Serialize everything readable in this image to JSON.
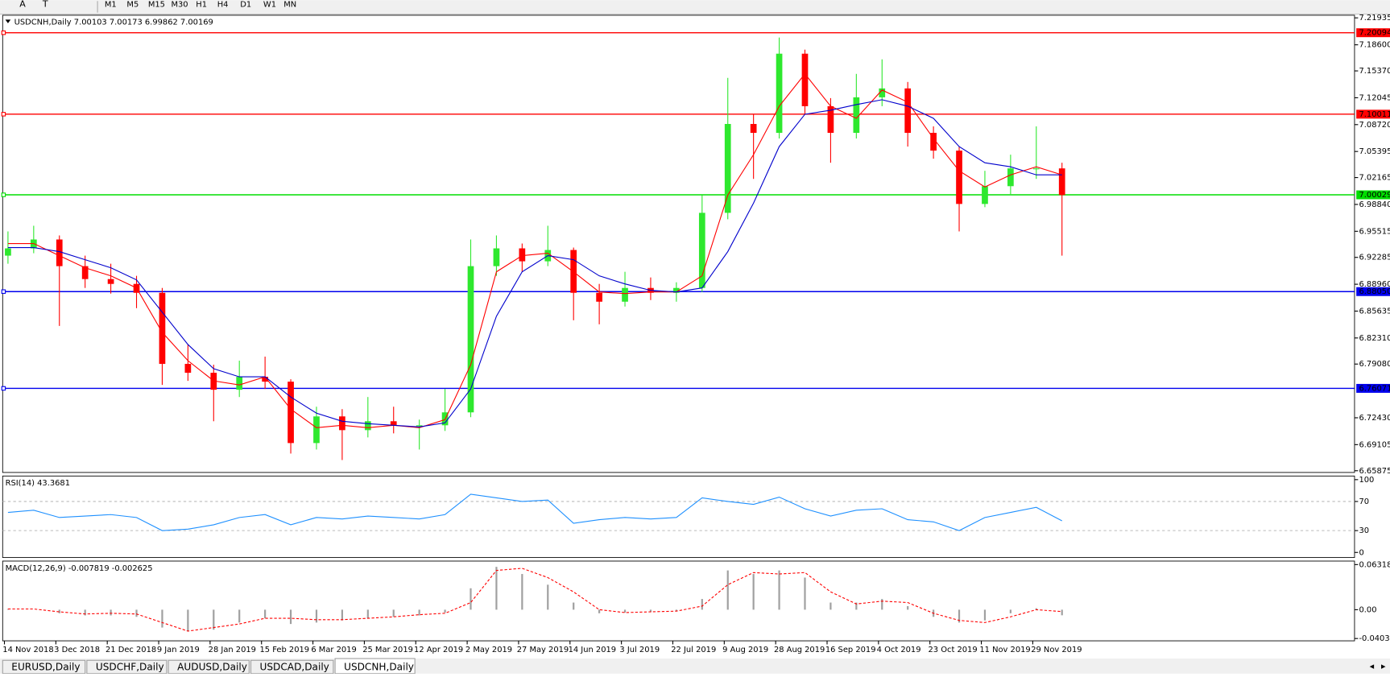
{
  "toolbar": {
    "tools": [
      "A",
      "T"
    ],
    "timeframes": [
      "M1",
      "M5",
      "M15",
      "M30",
      "H1",
      "H4",
      "D1",
      "W1",
      "MN"
    ]
  },
  "tabs": [
    "EURUSD,Daily",
    "USDCHF,Daily",
    "AUDUSD,Daily",
    "USDCAD,Daily",
    "USDCNH,Daily"
  ],
  "active_tab": 4,
  "chart_data": [
    {
      "type": "candlestick",
      "title": "USDCNH,Daily  7.00103 7.00173 6.99862 7.00169",
      "categories": [
        "14 Nov 2018",
        null,
        "3 Dec 2018",
        null,
        "21 Dec 2018",
        null,
        "9 Jan 2019",
        null,
        "28 Jan 2019",
        null,
        "15 Feb 2019",
        null,
        "6 Mar 2019",
        null,
        "25 Mar 2019",
        null,
        "12 Apr 2019",
        null,
        "2 May 2019",
        null,
        "27 May 2019",
        null,
        "14 Jun 2019",
        null,
        "3 Jul 2019",
        null,
        "22 Jul 2019",
        null,
        "9 Aug 2019",
        null,
        "28 Aug 2019",
        null,
        "16 Sep 2019",
        null,
        "4 Oct 2019",
        null,
        "23 Oct 2019",
        null,
        "11 Nov 2019",
        null,
        "29 Nov 2019",
        null
      ],
      "open": [
        6.925,
        6.934,
        6.945,
        6.912,
        6.896,
        6.89,
        6.879,
        6.791,
        6.78,
        6.759,
        6.775,
        6.769,
        6.693,
        6.726,
        6.709,
        6.72,
        6.715,
        6.715,
        6.731,
        6.912,
        6.934,
        6.918,
        6.932,
        6.879,
        6.868,
        6.885,
        6.879,
        6.885,
        6.978,
        7.088,
        7.077,
        7.175,
        7.11,
        7.077,
        7.121,
        7.132,
        7.077,
        7.055,
        6.989,
        7.011,
        7.033,
        7.033
      ],
      "high": [
        6.955,
        6.962,
        6.95,
        6.925,
        6.915,
        6.9,
        6.885,
        6.815,
        6.79,
        6.795,
        6.8,
        6.772,
        6.738,
        6.735,
        6.75,
        6.738,
        6.722,
        6.76,
        6.945,
        6.95,
        6.94,
        6.962,
        6.935,
        6.89,
        6.905,
        6.898,
        6.892,
        7.0,
        7.145,
        7.1,
        7.195,
        7.18,
        7.12,
        7.15,
        7.168,
        7.14,
        7.085,
        7.06,
        7.03,
        7.05,
        7.085,
        7.04
      ],
      "low": [
        6.915,
        6.928,
        6.838,
        6.885,
        6.878,
        6.86,
        6.765,
        6.77,
        6.72,
        6.75,
        6.76,
        6.68,
        6.685,
        6.672,
        6.7,
        6.705,
        6.685,
        6.708,
        6.725,
        6.9,
        6.905,
        6.912,
        6.845,
        6.84,
        6.862,
        6.87,
        6.868,
        6.88,
        6.97,
        7.02,
        7.07,
        7.1,
        7.04,
        7.07,
        7.11,
        7.06,
        7.045,
        6.955,
        6.985,
        7.0,
        7.02,
        6.925
      ],
      "close": [
        6.934,
        6.945,
        6.912,
        6.896,
        6.89,
        6.879,
        6.791,
        6.78,
        6.759,
        6.775,
        6.769,
        6.693,
        6.726,
        6.709,
        6.72,
        6.715,
        6.715,
        6.731,
        6.912,
        6.934,
        6.918,
        6.932,
        6.879,
        6.868,
        6.885,
        6.879,
        6.885,
        6.978,
        7.088,
        7.077,
        7.175,
        7.11,
        7.077,
        7.121,
        7.132,
        7.077,
        7.055,
        6.989,
        7.011,
        7.033,
        7.033,
        7.0
      ],
      "up_color": "#2ee82e",
      "down_color": "#ff0000",
      "overlays": [
        {
          "color": "#ff0000",
          "values": [
            6.94,
            6.94,
            6.925,
            6.91,
            6.9,
            6.885,
            6.83,
            6.795,
            6.77,
            6.765,
            6.775,
            6.735,
            6.712,
            6.715,
            6.712,
            6.715,
            6.712,
            6.722,
            6.79,
            6.905,
            6.925,
            6.928,
            6.905,
            6.88,
            6.878,
            6.88,
            6.88,
            6.9,
            7.0,
            7.05,
            7.11,
            7.15,
            7.11,
            7.095,
            7.13,
            7.115,
            7.07,
            7.03,
            7.01,
            7.025,
            7.035,
            7.025
          ]
        },
        {
          "color": "#0000cc",
          "values": [
            6.935,
            6.935,
            6.93,
            6.92,
            6.91,
            6.895,
            6.855,
            6.815,
            6.785,
            6.775,
            6.775,
            6.75,
            6.73,
            6.72,
            6.717,
            6.715,
            6.713,
            6.718,
            6.76,
            6.85,
            6.905,
            6.925,
            6.92,
            6.9,
            6.89,
            6.882,
            6.88,
            6.885,
            6.93,
            6.99,
            7.06,
            7.1,
            7.105,
            7.112,
            7.118,
            7.11,
            7.095,
            7.06,
            7.04,
            7.035,
            7.025,
            7.025
          ]
        }
      ],
      "ylim": [
        6.6566,
        7.2226
      ],
      "yticks": [
        {
          "value": 7.21935,
          "label": "7.21935"
        },
        {
          "value": 7.186,
          "label": "7.18600"
        },
        {
          "value": 7.1537,
          "label": "7.15370"
        },
        7.12045,
        {
          "value": 7.0872,
          "label": "7.08720"
        },
        7.05395,
        7.02165,
        {
          "value": 6.9884,
          "label": "6.98840"
        },
        6.95515,
        6.92285,
        {
          "value": 6.8896,
          "label": "6.88960"
        },
        6.85635,
        {
          "value": 6.8231,
          "label": "6.82310"
        },
        {
          "value": 6.7908,
          "label": "6.79080"
        },
        {
          "value": 6.7243,
          "label": "6.72430"
        },
        6.69105,
        6.65875
      ],
      "hlines": [
        {
          "value": 7.20094,
          "color": "#ff0000"
        },
        {
          "value": 7.10011,
          "color": "#ff0000"
        },
        {
          "value": 7.00029,
          "color": "#00dd00"
        },
        {
          "value": {
            "value": 6.8805,
            "label": "6.88050"
          },
          "color": "#0000ee"
        },
        {
          "value": 6.76071,
          "color": "#0000ee"
        }
      ]
    },
    {
      "type": "line",
      "title": "RSI(14) 43.3681",
      "color": "#1e90ff",
      "values": [
        55,
        58,
        48,
        50,
        52,
        48,
        30,
        32,
        38,
        48,
        52,
        38,
        48,
        46,
        50,
        48,
        46,
        52,
        80,
        75,
        70,
        72,
        40,
        45,
        48,
        46,
        48,
        75,
        70,
        66,
        76,
        60,
        50,
        58,
        60,
        45,
        42,
        30,
        48,
        55,
        62,
        43.3681
      ],
      "ylim": [
        -7,
        105
      ],
      "yticks": [
        100,
        70,
        30,
        0
      ],
      "levels": [
        70,
        30
      ]
    },
    {
      "type": "macd",
      "title": "MACD(12,26,9) -0.007819 -0.002625",
      "histogram_color": "#a0a0a0",
      "signal_color": "#ff0000",
      "histogram": [
        0.001,
        0.0,
        -0.005,
        -0.008,
        -0.008,
        -0.01,
        -0.025,
        -0.03,
        -0.028,
        -0.018,
        -0.012,
        -0.02,
        -0.018,
        -0.015,
        -0.012,
        -0.01,
        -0.008,
        -0.004,
        0.03,
        0.06,
        0.05,
        0.035,
        0.01,
        -0.005,
        -0.004,
        -0.003,
        -0.002,
        0.015,
        0.055,
        0.05,
        0.055,
        0.045,
        0.01,
        0.01,
        0.015,
        0.005,
        -0.01,
        -0.018,
        -0.015,
        -0.005,
        0.002,
        -0.007819
      ],
      "signal": [
        0.001,
        0.001,
        -0.003,
        -0.006,
        -0.005,
        -0.006,
        -0.018,
        -0.03,
        -0.025,
        -0.02,
        -0.012,
        -0.012,
        -0.014,
        -0.014,
        -0.012,
        -0.01,
        -0.007,
        -0.005,
        0.01,
        0.055,
        0.058,
        0.045,
        0.025,
        0.0,
        -0.004,
        -0.003,
        -0.002,
        0.005,
        0.035,
        0.052,
        0.05,
        0.052,
        0.025,
        0.008,
        0.012,
        0.01,
        -0.005,
        -0.015,
        -0.018,
        -0.01,
        0.0,
        -0.002625
      ],
      "ylim": [
        -0.0436,
        0.0681
      ],
      "yticks": [
        0.063184,
        {
          "value": 0,
          "label": "0.00"
        },
        -0.040355
      ]
    }
  ]
}
